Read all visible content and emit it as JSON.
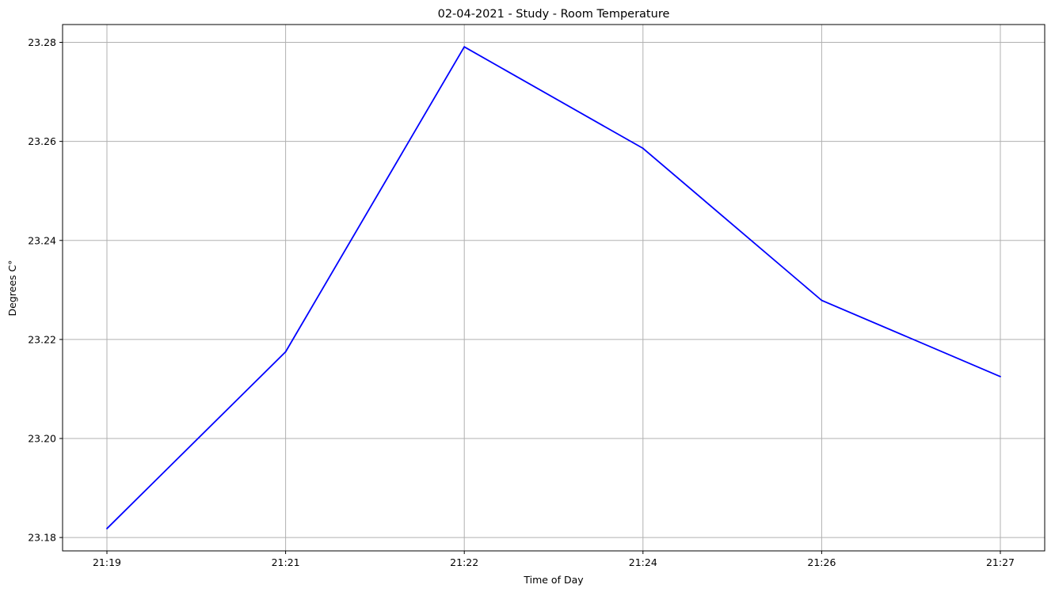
{
  "chart_data": {
    "type": "line",
    "title": "02-04-2021 - Study - Room Temperature",
    "xlabel": "Time of Day",
    "ylabel": "Degrees C°",
    "categories": [
      "21:19",
      "21:21",
      "21:22",
      "21:24",
      "21:26",
      "21:27"
    ],
    "series": [
      {
        "values": [
          23.1818,
          23.2175,
          23.2791,
          23.2586,
          23.2279,
          23.2125
        ],
        "color": "#0000ff"
      }
    ],
    "yticks": [
      "23.18",
      "23.20",
      "23.22",
      "23.24",
      "23.26",
      "23.28"
    ],
    "ylim": [
      23.1773,
      23.2836
    ],
    "grid": true,
    "grid_color": "#b0b0b0",
    "legend": "none"
  }
}
